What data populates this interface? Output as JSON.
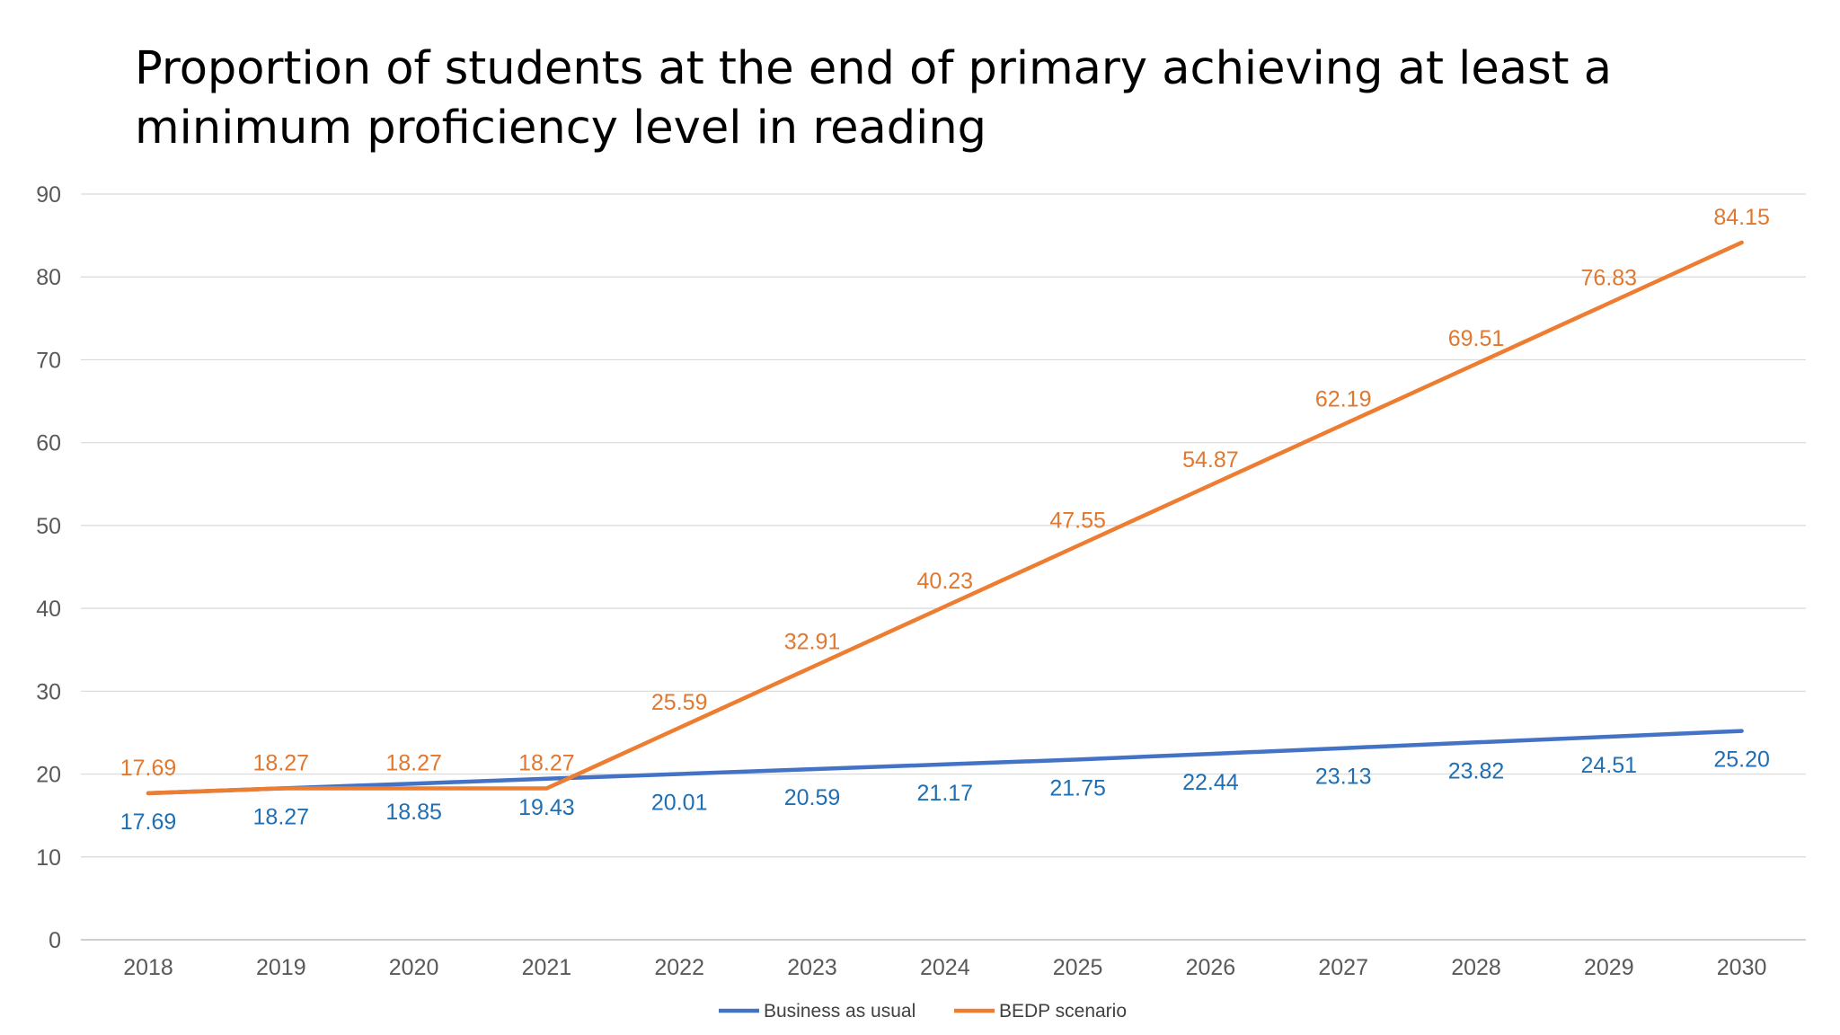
{
  "slide": {
    "title_line1": "Proportion of students at the end of primary achieving at least a",
    "title_line2": "minimum proficiency level in reading"
  },
  "chart_data": {
    "type": "line",
    "title": "Proportion of students at the end of primary achieving at least a minimum proficiency level in reading",
    "xlabel": "",
    "ylabel": "",
    "categories": [
      "2018",
      "2019",
      "2020",
      "2021",
      "2022",
      "2023",
      "2024",
      "2025",
      "2026",
      "2027",
      "2028",
      "2029",
      "2030"
    ],
    "ylim": [
      0,
      90
    ],
    "yticks": [
      0,
      10,
      20,
      30,
      40,
      50,
      60,
      70,
      80,
      90
    ],
    "grid": true,
    "legend_position": "bottom",
    "series": [
      {
        "name": "Business as usual",
        "color": "#4472C4",
        "label_color": "#1F6FB2",
        "values": [
          17.69,
          18.27,
          18.85,
          19.43,
          20.01,
          20.59,
          21.17,
          21.75,
          22.44,
          23.13,
          23.82,
          24.51,
          25.2
        ],
        "labels": [
          "17.69",
          "18.27",
          "18.85",
          "19.43",
          "20.01",
          "20.59",
          "21.17",
          "21.75",
          "22.44",
          "23.13",
          "23.82",
          "24.51",
          "25.20"
        ],
        "label_position": "below"
      },
      {
        "name": "BEDP scenario",
        "color": "#ED7D31",
        "label_color": "#E0782F",
        "values": [
          17.69,
          18.27,
          18.27,
          18.27,
          25.59,
          32.91,
          40.23,
          47.55,
          54.87,
          62.19,
          69.51,
          76.83,
          84.15
        ],
        "labels": [
          "17.69",
          "18.27",
          "18.27",
          "18.27",
          "25.59",
          "32.91",
          "40.23",
          "47.55",
          "54.87",
          "62.19",
          "69.51",
          "76.83",
          "84.15"
        ],
        "label_position": "above"
      }
    ]
  }
}
